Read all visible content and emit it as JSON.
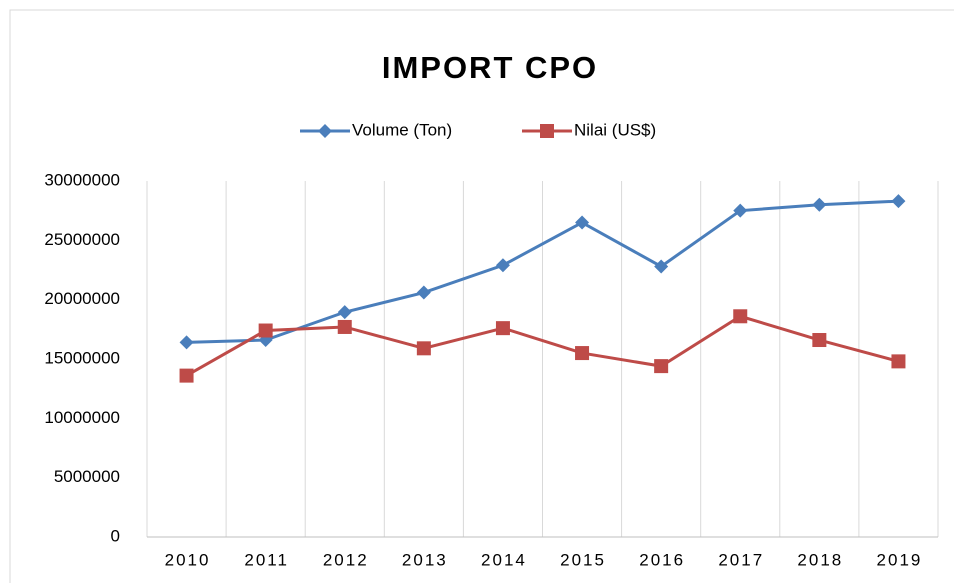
{
  "chart_data": {
    "type": "line",
    "title": "IMPORT CPO",
    "categories": [
      "2010",
      "2011",
      "2012",
      "2013",
      "2014",
      "2015",
      "2016",
      "2017",
      "2018",
      "2019"
    ],
    "series": [
      {
        "name": "Volume (Ton)",
        "color": "#4a7ebb",
        "marker": "diamond",
        "values": [
          16400000,
          16600000,
          18950000,
          20600000,
          22900000,
          26500000,
          22800000,
          27500000,
          28000000,
          28300000
        ]
      },
      {
        "name": "Nilai (US$)",
        "color": "#be4b48",
        "marker": "square",
        "values": [
          13600000,
          17400000,
          17700000,
          15900000,
          17600000,
          15500000,
          14400000,
          18600000,
          16600000,
          14800000
        ]
      }
    ],
    "ylim": [
      0,
      30000000
    ],
    "yticks": [
      0,
      5000000,
      10000000,
      15000000,
      20000000,
      25000000,
      30000000
    ],
    "grid": true,
    "legend": "top"
  }
}
